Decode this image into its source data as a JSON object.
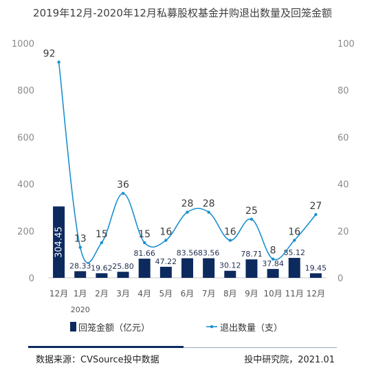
{
  "title": "2019年12月-2020年12月私募股权基金并购退出数量及回笼金额",
  "chart_data": {
    "type": "bar",
    "categories": [
      "12月",
      "1月",
      "2月",
      "3月",
      "4月",
      "5月",
      "6月",
      "7月",
      "8月",
      "9月",
      "10月",
      "11月",
      "12月"
    ],
    "year_label": "2020",
    "series": [
      {
        "name": "回笼金额（亿元）",
        "type": "bar",
        "axis": "left",
        "color": "#0d2a5e",
        "values": [
          304.45,
          28.33,
          19.62,
          25.8,
          81.66,
          47.22,
          83.56,
          83.56,
          30.12,
          78.71,
          37.84,
          85.12,
          19.45
        ],
        "labels": [
          "304.45",
          "28.33",
          "19.62",
          "25.80",
          "81.66",
          "47.22",
          "83.56",
          "83.56",
          "30.12",
          "78.71",
          "37.84",
          "85.12",
          "19.45"
        ]
      },
      {
        "name": "退出数量（支）",
        "type": "line",
        "axis": "right",
        "color": "#1a8fd0",
        "values": [
          92,
          13,
          15,
          36,
          15,
          16,
          28,
          28,
          16,
          25,
          8,
          16,
          27
        ],
        "labels": [
          "92",
          "13",
          "15",
          "36",
          "15",
          "16",
          "28",
          "28",
          "16",
          "25",
          "8",
          "16",
          "27"
        ]
      }
    ],
    "y_left": {
      "min": 0,
      "max": 1000,
      "ticks": [
        0,
        200,
        400,
        600,
        800,
        1000
      ]
    },
    "y_right": {
      "min": 0,
      "max": 100,
      "ticks": [
        0,
        20,
        40,
        60,
        80,
        100
      ]
    },
    "legend_position": "bottom",
    "grid": false
  },
  "footer": {
    "source": "数据来源：CVSource投中数据",
    "credit": "投中研究院，2021.01"
  }
}
